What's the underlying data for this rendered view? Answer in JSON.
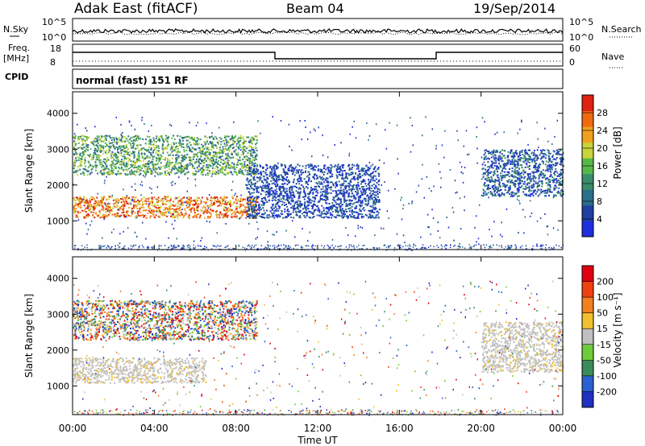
{
  "header": {
    "station": "Adak East (fitACF)",
    "beam": "Beam 04",
    "date": "19/Sep/2014"
  },
  "top_panels": {
    "nsky_label": "N.Sky",
    "nsearch_label": "N.Search",
    "nsky_ticks": [
      "10^5",
      "10^0"
    ],
    "nsearch_ticks": [
      "10^5",
      "10^0"
    ],
    "freq_label": "Freq.",
    "freq_unit": "[MHz]",
    "freq_ticks": [
      "18",
      "8"
    ],
    "nave_label": "Nave",
    "nave_ticks": [
      "60",
      "0"
    ],
    "cpid_label": "CPID",
    "cpid_text": "normal (fast) 151 RF"
  },
  "time_axis": {
    "label": "Time UT",
    "ticks": [
      "00:00",
      "04:00",
      "08:00",
      "12:00",
      "16:00",
      "20:00",
      "00:00"
    ]
  },
  "chart_data": [
    {
      "type": "heatmap",
      "title": "",
      "ylabel": "Slant Range [km]",
      "xlabel": "Time UT",
      "xlim_hours": [
        0,
        24
      ],
      "ylim_km": [
        200,
        4600
      ],
      "yticks": [
        "1000",
        "2000",
        "3000",
        "4000"
      ],
      "colorbar": {
        "label": "Power [dB]",
        "ticks": [
          "4",
          "8",
          "12",
          "16",
          "20",
          "24",
          "28"
        ],
        "colors": [
          "#1f2fe0",
          "#1e3fa0",
          "#2a6e8a",
          "#3a8c6a",
          "#57b84a",
          "#c8d43a",
          "#f0a020",
          "#f06a10",
          "#e02010"
        ]
      },
      "regions": [
        {
          "name": "low-range-band",
          "t": [
            0,
            9
          ],
          "range_km": [
            1100,
            1700
          ],
          "level": "high"
        },
        {
          "name": "upper-band",
          "t": [
            0,
            9
          ],
          "range_km": [
            2300,
            3400
          ],
          "level": "medium"
        },
        {
          "name": "midday-scatter",
          "t": [
            8.5,
            15
          ],
          "range_km": [
            1100,
            2600
          ],
          "level": "low"
        },
        {
          "name": "evening-patch",
          "t": [
            20,
            24
          ],
          "range_km": [
            1700,
            3000
          ],
          "level": "low-medium"
        }
      ]
    },
    {
      "type": "heatmap",
      "title": "",
      "ylabel": "Slant Range [km]",
      "xlabel": "Time UT",
      "xlim_hours": [
        0,
        24
      ],
      "ylim_km": [
        200,
        4600
      ],
      "yticks": [
        "1000",
        "2000",
        "3000",
        "4000"
      ],
      "colorbar": {
        "label": "Velocity [m s⁻¹]",
        "ticks": [
          "200",
          "100",
          "50",
          "15",
          "-15",
          "-50",
          "-100",
          "-200"
        ],
        "colors": [
          "#2030c0",
          "#2a60d0",
          "#3a8c5a",
          "#6ecc3a",
          "#c0c0c0",
          "#f0c030",
          "#f08020",
          "#f04010",
          "#e00010"
        ]
      },
      "regions": [
        {
          "name": "ground-scatter-band",
          "t": [
            0,
            6.5
          ],
          "range_km": [
            1100,
            1800
          ],
          "velocity": "~0"
        },
        {
          "name": "upper-scatter",
          "t": [
            0,
            9
          ],
          "range_km": [
            2300,
            3400
          ],
          "velocity": "mixed"
        },
        {
          "name": "evening-ground-scatter",
          "t": [
            20,
            24
          ],
          "range_km": [
            1400,
            2800
          ],
          "velocity": "~0"
        }
      ]
    }
  ]
}
